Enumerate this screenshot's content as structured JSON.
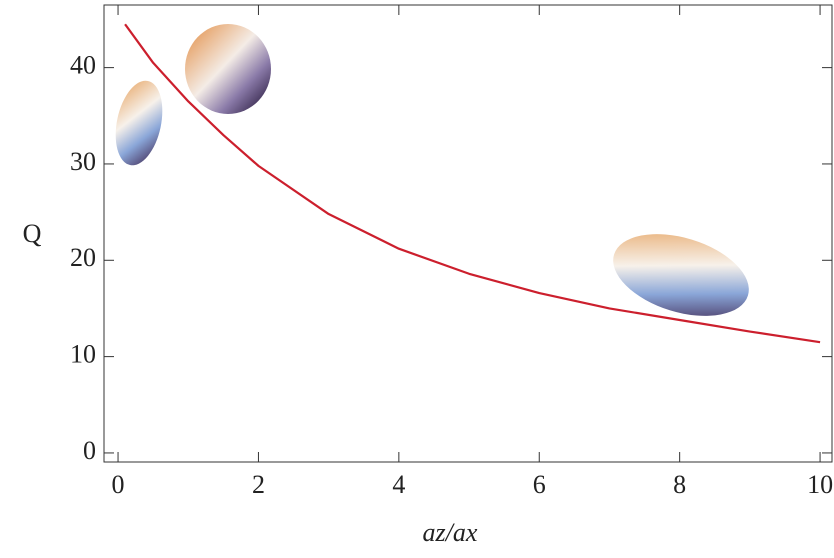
{
  "chart_data": {
    "type": "line",
    "x_label": "az/ax",
    "y_label": "Q",
    "x": [
      0.1,
      0.5,
      1,
      1.5,
      2,
      3,
      4,
      5,
      6,
      7,
      8,
      9,
      10
    ],
    "series": [
      {
        "color": "#cc1f2d",
        "values": [
          44.5,
          40.5,
          36.5,
          33,
          29.8,
          24.8,
          21.2,
          18.6,
          16.6,
          15.0,
          13.8,
          12.6,
          11.5
        ]
      }
    ],
    "xlim": [
      -0.2,
      10.17
    ],
    "ylim": [
      -0.94,
      46.5
    ],
    "xticks": [
      0,
      2,
      4,
      6,
      8,
      10
    ],
    "yticks": [
      0,
      10,
      20,
      30,
      40
    ],
    "grid": false
  }
}
